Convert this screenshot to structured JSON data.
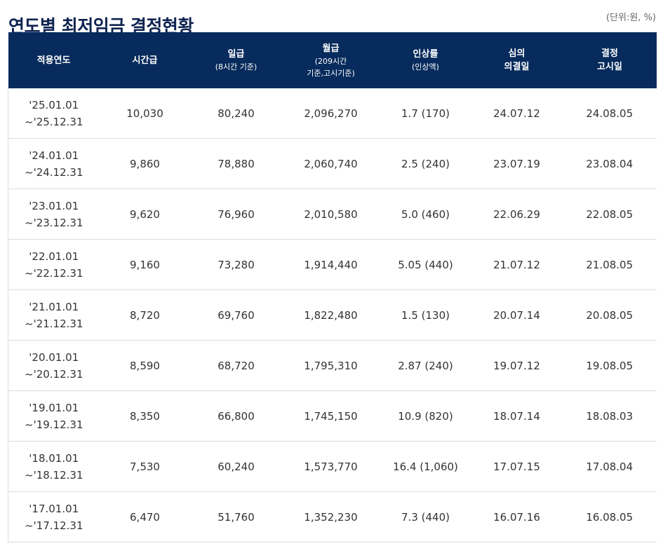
{
  "page": {
    "title": "연도별 최저임금 결정현황",
    "unit_note": "(단위:원, %)"
  },
  "table": {
    "headers": [
      {
        "main": "적용연도",
        "main2": "",
        "sub": ""
      },
      {
        "main": "시간급",
        "main2": "",
        "sub": ""
      },
      {
        "main": "일급",
        "main2": "",
        "sub": "(8시간 기준)"
      },
      {
        "main": "월급",
        "main2": "",
        "sub": "(209시간\n기준,고시기준)"
      },
      {
        "main": "인상률",
        "main2": "",
        "sub": "(인상액)"
      },
      {
        "main": "심의",
        "main2": "의결일",
        "sub": ""
      },
      {
        "main": "결정",
        "main2": "고시일",
        "sub": ""
      }
    ],
    "rows": [
      {
        "period_start": "'25.01.01",
        "period_end": "~'25.12.31",
        "hourly": "10,030",
        "daily": "80,240",
        "monthly": "2,096,270",
        "increase": "1.7 (170)",
        "deliberation": "24.07.12",
        "notice": "24.08.05"
      },
      {
        "period_start": "'24.01.01",
        "period_end": "~'24.12.31",
        "hourly": "9,860",
        "daily": "78,880",
        "monthly": "2,060,740",
        "increase": "2.5 (240)",
        "deliberation": "23.07.19",
        "notice": "23.08.04"
      },
      {
        "period_start": "'23.01.01",
        "period_end": "~'23.12.31",
        "hourly": "9,620",
        "daily": "76,960",
        "monthly": "2,010,580",
        "increase": "5.0 (460)",
        "deliberation": "22.06.29",
        "notice": "22.08.05"
      },
      {
        "period_start": "'22.01.01",
        "period_end": "~'22.12.31",
        "hourly": "9,160",
        "daily": "73,280",
        "monthly": "1,914,440",
        "increase": "5.05 (440)",
        "deliberation": "21.07.12",
        "notice": "21.08.05"
      },
      {
        "period_start": "'21.01.01",
        "period_end": "~'21.12.31",
        "hourly": "8,720",
        "daily": "69,760",
        "monthly": "1,822,480",
        "increase": "1.5 (130)",
        "deliberation": "20.07.14",
        "notice": "20.08.05"
      },
      {
        "period_start": "'20.01.01",
        "period_end": "~'20.12.31",
        "hourly": "8,590",
        "daily": "68,720",
        "monthly": "1,795,310",
        "increase": "2.87 (240)",
        "deliberation": "19.07.12",
        "notice": "19.08.05"
      },
      {
        "period_start": "'19.01.01",
        "period_end": "~'19.12.31",
        "hourly": "8,350",
        "daily": "66,800",
        "monthly": "1,745,150",
        "increase": "10.9 (820)",
        "deliberation": "18.07.14",
        "notice": "18.08.03"
      },
      {
        "period_start": "'18.01.01",
        "period_end": "~'18.12.31",
        "hourly": "7,530",
        "daily": "60,240",
        "monthly": "1,573,770",
        "increase": "16.4 (1,060)",
        "deliberation": "17.07.15",
        "notice": "17.08.04"
      },
      {
        "period_start": "'17.01.01",
        "period_end": "~'17.12.31",
        "hourly": "6,470",
        "daily": "51,760",
        "monthly": "1,352,230",
        "increase": "7.3 (440)",
        "deliberation": "16.07.16",
        "notice": "16.08.05"
      }
    ]
  },
  "colors": {
    "header_bg": "#072b5c",
    "title": "#0e2350",
    "row_border": "#dddddd"
  }
}
